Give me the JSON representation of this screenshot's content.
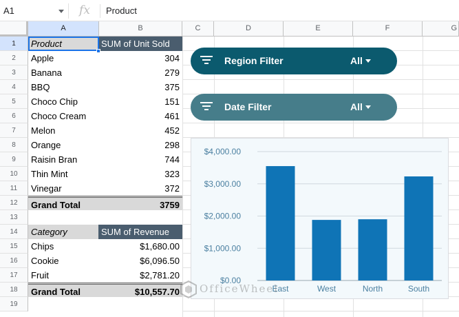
{
  "formula_bar": {
    "cell_ref": "A1",
    "fx": "fx",
    "content": "Product"
  },
  "columns": [
    "A",
    "B",
    "C",
    "D",
    "E",
    "F",
    "G"
  ],
  "rows": [
    "1",
    "2",
    "3",
    "4",
    "5",
    "6",
    "7",
    "8",
    "9",
    "10",
    "11",
    "12",
    "13",
    "14",
    "15",
    "16",
    "17",
    "18",
    "19"
  ],
  "pivot1": {
    "header_a": "Product",
    "header_b": "SUM of Unit Sold",
    "items": [
      {
        "name": "Apple",
        "value": "304"
      },
      {
        "name": "Banana",
        "value": "279"
      },
      {
        "name": "BBQ",
        "value": "375"
      },
      {
        "name": "Choco Chip",
        "value": "151"
      },
      {
        "name": "Choco Cream",
        "value": "461"
      },
      {
        "name": "Melon",
        "value": "452"
      },
      {
        "name": "Orange",
        "value": "298"
      },
      {
        "name": "Raisin Bran",
        "value": "744"
      },
      {
        "name": "Thin Mint",
        "value": "323"
      },
      {
        "name": "Vinegar",
        "value": "372"
      }
    ],
    "total_label": "Grand Total",
    "total_value": "3759"
  },
  "pivot2": {
    "header_a": "Category",
    "header_b": "SUM of Revenue",
    "items": [
      {
        "name": "Chips",
        "value": "$1,680.00"
      },
      {
        "name": "Cookie",
        "value": "$6,096.50"
      },
      {
        "name": "Fruit",
        "value": "$2,781.20"
      }
    ],
    "total_label": "Grand Total",
    "total_value": "$10,557.70"
  },
  "filters": {
    "region": {
      "label": "Region Filter",
      "value": "All",
      "color": "#0b5a6e"
    },
    "date": {
      "label": "Date Filter",
      "value": "All",
      "color": "#467d8a"
    }
  },
  "colors": {
    "bar": "#0f74b6",
    "pivot_header": "#4a5d6e",
    "selection": "#1a73e8"
  },
  "watermark": "OfficeWheel",
  "chart_data": {
    "type": "bar",
    "categories": [
      "East",
      "West",
      "North",
      "South"
    ],
    "values": [
      3550,
      1880,
      1900,
      3230
    ],
    "ylim": [
      0,
      4000
    ],
    "yticks": [
      0,
      1000,
      2000,
      3000,
      4000
    ],
    "ytick_labels": [
      "$0.00",
      "$1,000.00",
      "$2,000.00",
      "$3,000.00",
      "$4,000.00"
    ],
    "title": "",
    "xlabel": "",
    "ylabel": ""
  }
}
